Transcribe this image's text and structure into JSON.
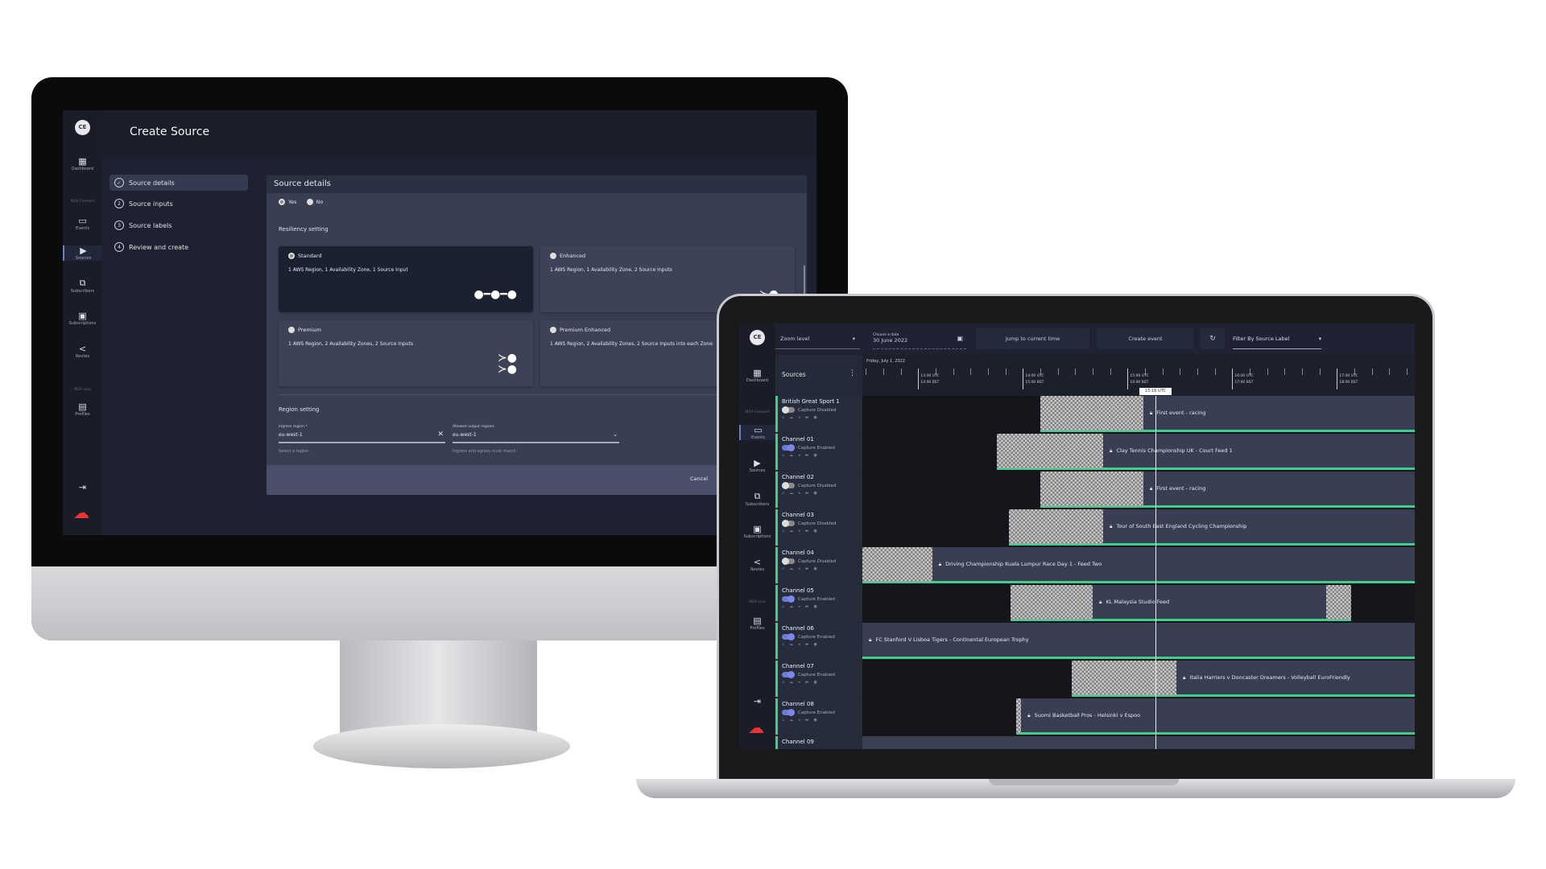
{
  "monitor": {
    "logo": "CE",
    "title": "Create Source",
    "nav": {
      "dashboard": "Dashboard",
      "section_connect": "M2A Connect",
      "events": "Events",
      "sources": "Sources",
      "subscribers": "Subscribers",
      "subscriptions": "Subscriptions",
      "routes": "Routes",
      "section_live": "M2A Live",
      "profiles": "Profiles"
    },
    "steps": [
      {
        "num": "✓",
        "label": "Source details"
      },
      {
        "num": "2",
        "label": "Source inputs"
      },
      {
        "num": "3",
        "label": "Source labels"
      },
      {
        "num": "4",
        "label": "Review and create"
      }
    ],
    "card": {
      "title": "Source details",
      "yes": "Yes",
      "no": "No",
      "resiliency_heading": "Resiliency setting",
      "options": [
        {
          "name": "Standard",
          "desc": "1 AWS Region, 1 Availability Zone, 1 Source Input",
          "selected": true
        },
        {
          "name": "Enhanced",
          "desc": "1 AWS Region, 1 Availability Zone, 2 Source Inputs",
          "selected": false
        },
        {
          "name": "Premium",
          "desc": "1 AWS Region, 2 Availability Zones, 2 Source Inputs",
          "selected": false
        },
        {
          "name": "Premium Enhanced",
          "desc": "1 AWS Region, 2 Availability Zones, 2 Source Inputs into each Zone",
          "selected": false
        }
      ],
      "region_heading": "Region setting",
      "ingress_label": "Ingress region *",
      "ingress_value": "eu-west-1",
      "ingress_helper": "Select a region.",
      "output_label": "Allowed output regions",
      "output_value": "eu-west-1",
      "output_helper": "Ingress and egress must match.",
      "cancel": "Cancel"
    }
  },
  "laptop": {
    "logo": "CE",
    "nav": {
      "dashboard": "Dashboard",
      "section_connect": "M2A Connect",
      "events": "Events",
      "sources": "Sources",
      "subscribers": "Subscribers",
      "subscriptions": "Subscriptions",
      "routes": "Routes",
      "section_live": "M2A Live",
      "profiles": "Profiles"
    },
    "toolbar": {
      "zoom_level": "Zoom level",
      "date_label": "Choose a date",
      "date_value": "30 June 2022",
      "jump": "Jump to current time",
      "create": "Create event",
      "filter": "Filter By Source Label"
    },
    "sources_header": "Sources",
    "day_label": "Friday, July 1, 2022",
    "current_time": "15:16 UTC",
    "ticks": [
      {
        "utc": "13:00 UTC",
        "bst": "14:00 BST",
        "time": "13:00"
      },
      {
        "utc": "14:00 UTC",
        "bst": "15:00 BST",
        "time": "14:00"
      },
      {
        "utc": "15:00 UTC",
        "bst": "16:00 BST",
        "time": "15:00"
      },
      {
        "utc": "16:00 UTC",
        "bst": "17:00 BST",
        "time": "16:00"
      },
      {
        "utc": "17:00 UTC",
        "bst": "18:00 BST",
        "time": "17:00"
      }
    ],
    "accent": "#3ecf8e",
    "rows": [
      {
        "name": "British Great Sport 1",
        "capture": "Capture Disabled",
        "enabled": false,
        "events": [
          {
            "prep": "14:10",
            "start": "15:09",
            "end": "19:00",
            "title": "First event - racing"
          }
        ]
      },
      {
        "name": "Channel 01",
        "capture": "Capture Enabled",
        "enabled": true,
        "events": [
          {
            "prep": "13:45",
            "start": "14:46",
            "end": "19:00",
            "title": "Clay Tennis Championship UK - Court Feed 1"
          }
        ]
      },
      {
        "name": "Channel 02",
        "capture": "Capture Disabled",
        "enabled": false,
        "events": [
          {
            "prep": "14:10",
            "start": "15:09",
            "end": "19:00",
            "title": "First event - racing"
          }
        ]
      },
      {
        "name": "Channel 03",
        "capture": "Capture Disabled",
        "enabled": false,
        "events": [
          {
            "prep": "13:52",
            "start": "14:46",
            "end": "19:00",
            "title": "Tour of South East England Cycling Championship"
          }
        ]
      },
      {
        "name": "Channel 04",
        "capture": "Capture Disabled",
        "enabled": false,
        "events": [
          {
            "prep": "12:00",
            "start": "13:08",
            "end": "19:00",
            "title": "Driving Championship Kuala Lumpur Race Day 1 - Feed Two"
          }
        ]
      },
      {
        "name": "Channel 05",
        "capture": "Capture Enabled",
        "enabled": true,
        "events": [
          {
            "prep": "13:53",
            "start": "14:40",
            "end": "16:54",
            "post": "17:08",
            "title": "KL Malaysia Studio Feed"
          }
        ]
      },
      {
        "name": "Channel 06",
        "capture": "Capture Enabled",
        "enabled": true,
        "events": [
          {
            "prep": "12:00",
            "start": "12:00",
            "end": "19:00",
            "title": "FC Stanford V Lisboa Tigers - Continental European Trophy"
          }
        ]
      },
      {
        "name": "Channel 07",
        "capture": "Capture Enabled",
        "enabled": true,
        "events": [
          {
            "prep": "14:28",
            "start": "15:28",
            "end": "19:00",
            "title": "Italia Harriers v Doncaster Dreamers - Volleyball EuroFriendly"
          }
        ]
      },
      {
        "name": "Channel 08",
        "capture": "Capture Enabled",
        "enabled": true,
        "events": [
          {
            "prep": "13:56",
            "start": "13:59",
            "end": "19:00",
            "title": "Suomi Basketball Pros - Helsinki v Espoo"
          }
        ]
      },
      {
        "name": "Channel 09",
        "capture": "",
        "enabled": false,
        "events": [
          {
            "prep": "12:00",
            "start": "12:00",
            "end": "19:00",
            "title": ""
          }
        ]
      }
    ]
  }
}
